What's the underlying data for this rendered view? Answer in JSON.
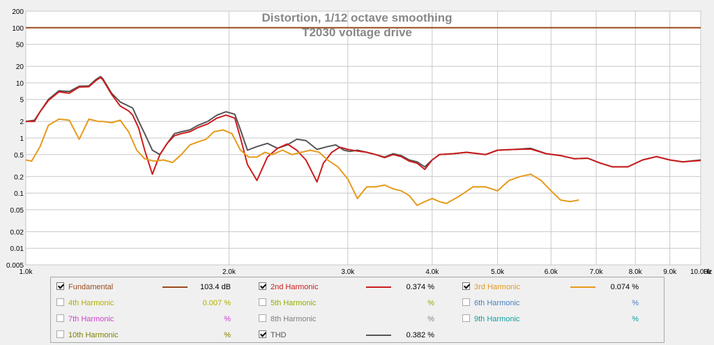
{
  "chart_data": {
    "type": "line",
    "title": "Distortion, 1/12 octave smoothing",
    "subtitle": "T2030 voltage drive",
    "xscale": "log",
    "yscale": "log",
    "xlim": [
      1000,
      10000
    ],
    "ylim": [
      0.005,
      200
    ],
    "x_unit": "Hz",
    "x_ticks": [
      {
        "v": 1000,
        "label": "1.0k"
      },
      {
        "v": 2000,
        "label": "2.0k"
      },
      {
        "v": 3000,
        "label": "3.0k"
      },
      {
        "v": 4000,
        "label": "4.0k"
      },
      {
        "v": 5000,
        "label": "5.0k"
      },
      {
        "v": 6000,
        "label": "6.0k"
      },
      {
        "v": 7000,
        "label": "7.0k"
      },
      {
        "v": 8000,
        "label": "8.0k"
      },
      {
        "v": 9000,
        "label": "9.0k"
      },
      {
        "v": 10000,
        "label": "10.00k"
      }
    ],
    "y_ticks": [
      {
        "v": 200,
        "label": "200"
      },
      {
        "v": 100,
        "label": "100"
      },
      {
        "v": 50,
        "label": "50"
      },
      {
        "v": 20,
        "label": "20"
      },
      {
        "v": 10,
        "label": "10"
      },
      {
        "v": 5,
        "label": "5"
      },
      {
        "v": 2,
        "label": "2"
      },
      {
        "v": 1,
        "label": "1"
      },
      {
        "v": 0.5,
        "label": "0.5"
      },
      {
        "v": 0.2,
        "label": "0.2"
      },
      {
        "v": 0.1,
        "label": "0.1"
      },
      {
        "v": 0.05,
        "label": "0.05"
      },
      {
        "v": 0.02,
        "label": "0.02"
      },
      {
        "v": 0.01,
        "label": "0.01"
      },
      {
        "v": 0.005,
        "label": "0.005"
      }
    ],
    "grid": true,
    "series": [
      {
        "name": "Fundamental",
        "color": "#9a4a1c",
        "x": [
          1000,
          10000
        ],
        "y": [
          100,
          100
        ]
      },
      {
        "name": "THD",
        "color": "#555555",
        "x": [
          1000,
          1030,
          1050,
          1080,
          1120,
          1160,
          1200,
          1240,
          1270,
          1290,
          1300,
          1340,
          1380,
          1420,
          1440,
          1470,
          1500,
          1540,
          1580,
          1620,
          1660,
          1700,
          1750,
          1800,
          1860,
          1920,
          1980,
          2040,
          2080,
          2130,
          2200,
          2280,
          2360,
          2440,
          2520,
          2600,
          2700,
          2800,
          2880,
          2960,
          3020,
          3100,
          3200,
          3300,
          3400,
          3500,
          3600,
          3700,
          3800,
          3900,
          4000,
          4100,
          4300,
          4500,
          4800,
          5000,
          5300,
          5600,
          5900,
          6200,
          6500,
          6800,
          7100,
          7400,
          7800,
          8200,
          8600,
          9000,
          9400,
          10000
        ],
        "y": [
          2.0,
          2.1,
          3.0,
          5.0,
          7.2,
          7.0,
          8.7,
          8.8,
          11.5,
          13.0,
          12.0,
          6.5,
          4.5,
          3.8,
          3.5,
          2.0,
          1.2,
          0.6,
          0.5,
          0.8,
          1.2,
          1.3,
          1.4,
          1.7,
          2.0,
          2.6,
          3.0,
          2.7,
          1.4,
          0.6,
          0.7,
          0.8,
          0.65,
          0.75,
          0.95,
          0.9,
          0.62,
          0.7,
          0.75,
          0.6,
          0.57,
          0.6,
          0.55,
          0.5,
          0.45,
          0.52,
          0.48,
          0.4,
          0.37,
          0.3,
          0.4,
          0.5,
          0.52,
          0.55,
          0.5,
          0.6,
          0.62,
          0.65,
          0.52,
          0.48,
          0.42,
          0.43,
          0.35,
          0.3,
          0.3,
          0.4,
          0.46,
          0.4,
          0.37,
          0.4
        ]
      },
      {
        "name": "2nd Harmonic",
        "color": "#cc1c1c",
        "x": [
          1000,
          1030,
          1050,
          1080,
          1120,
          1160,
          1200,
          1240,
          1270,
          1290,
          1300,
          1340,
          1380,
          1420,
          1440,
          1470,
          1500,
          1540,
          1580,
          1620,
          1660,
          1700,
          1750,
          1800,
          1860,
          1920,
          1980,
          2040,
          2080,
          2130,
          2200,
          2280,
          2360,
          2440,
          2520,
          2600,
          2700,
          2760,
          2840,
          2920,
          3000,
          3100,
          3200,
          3300,
          3400,
          3500,
          3600,
          3700,
          3800,
          3900,
          4000,
          4100,
          4300,
          4500,
          4800,
          5000,
          5300,
          5600,
          5900,
          6200,
          6500,
          6800,
          7100,
          7400,
          7800,
          8200,
          8600,
          9000,
          9400,
          10000
        ],
        "y": [
          2.0,
          2.0,
          3.0,
          4.8,
          6.9,
          6.5,
          8.4,
          8.5,
          11.0,
          12.5,
          11.5,
          6.2,
          3.8,
          3.1,
          2.6,
          1.5,
          0.6,
          0.22,
          0.5,
          0.8,
          1.1,
          1.2,
          1.3,
          1.55,
          1.8,
          2.3,
          2.6,
          2.3,
          1.0,
          0.33,
          0.17,
          0.45,
          0.65,
          0.78,
          0.6,
          0.4,
          0.16,
          0.35,
          0.55,
          0.68,
          0.62,
          0.58,
          0.55,
          0.5,
          0.44,
          0.5,
          0.46,
          0.38,
          0.35,
          0.27,
          0.4,
          0.5,
          0.52,
          0.55,
          0.5,
          0.6,
          0.62,
          0.63,
          0.52,
          0.48,
          0.42,
          0.43,
          0.35,
          0.3,
          0.3,
          0.4,
          0.46,
          0.4,
          0.37,
          0.39
        ]
      },
      {
        "name": "3rd Harmonic",
        "color": "#e69a1a",
        "x": [
          1000,
          1020,
          1050,
          1080,
          1120,
          1160,
          1200,
          1240,
          1280,
          1300,
          1340,
          1380,
          1420,
          1460,
          1500,
          1550,
          1600,
          1650,
          1700,
          1750,
          1800,
          1850,
          1900,
          1960,
          2020,
          2080,
          2140,
          2200,
          2260,
          2320,
          2400,
          2480,
          2560,
          2640,
          2720,
          2800,
          2900,
          3000,
          3100,
          3200,
          3300,
          3400,
          3500,
          3600,
          3700,
          3800,
          3900,
          4000,
          4100,
          4200,
          4400,
          4600,
          4800,
          5000,
          5200,
          5400,
          5600,
          5800,
          6000,
          6200,
          6400,
          6600
        ],
        "y": [
          0.4,
          0.38,
          0.7,
          1.7,
          2.2,
          2.1,
          0.95,
          2.2,
          2.0,
          2.0,
          1.9,
          2.1,
          1.3,
          0.6,
          0.42,
          0.38,
          0.4,
          0.36,
          0.5,
          0.75,
          0.85,
          0.95,
          1.3,
          1.4,
          1.2,
          0.6,
          0.45,
          0.45,
          0.55,
          0.5,
          0.6,
          0.5,
          0.55,
          0.6,
          0.55,
          0.4,
          0.3,
          0.18,
          0.08,
          0.13,
          0.13,
          0.14,
          0.12,
          0.11,
          0.09,
          0.06,
          0.07,
          0.08,
          0.07,
          0.065,
          0.09,
          0.13,
          0.13,
          0.11,
          0.17,
          0.2,
          0.22,
          0.17,
          0.11,
          0.075,
          0.07,
          0.075
        ]
      }
    ]
  },
  "legend": {
    "items": [
      {
        "label": "Fundamental",
        "checked": true,
        "color": "#9a4a1c",
        "show_line": true,
        "value": "103.4 dB"
      },
      {
        "label": "2nd Harmonic",
        "checked": true,
        "color": "#cc1c1c",
        "show_line": true,
        "value": "0.374 %"
      },
      {
        "label": "3rd Harmonic",
        "checked": true,
        "color": "#e69a1a",
        "show_line": true,
        "value": "0.074 %"
      },
      {
        "label": "4th Harmonic",
        "checked": false,
        "color": "#b0b000",
        "show_line": false,
        "value": "0.007 %"
      },
      {
        "label": "5th Harmonic",
        "checked": false,
        "color": "#90b000",
        "show_line": false,
        "value": "%"
      },
      {
        "label": "6th Harmonic",
        "checked": false,
        "color": "#4a7fc0",
        "show_line": false,
        "value": "%"
      },
      {
        "label": "7th Harmonic",
        "checked": false,
        "color": "#d040d0",
        "show_line": false,
        "value": "%"
      },
      {
        "label": "8th Harmonic",
        "checked": false,
        "color": "#808080",
        "show_line": false,
        "value": "%"
      },
      {
        "label": "9th Harmonic",
        "checked": false,
        "color": "#10a0a0",
        "show_line": false,
        "value": "%"
      },
      {
        "label": "10th Harmonic",
        "checked": false,
        "color": "#808000",
        "show_line": false,
        "value": "%"
      },
      {
        "label": "THD",
        "checked": true,
        "color": "#555555",
        "show_line": true,
        "value": "0.382 %"
      }
    ]
  }
}
